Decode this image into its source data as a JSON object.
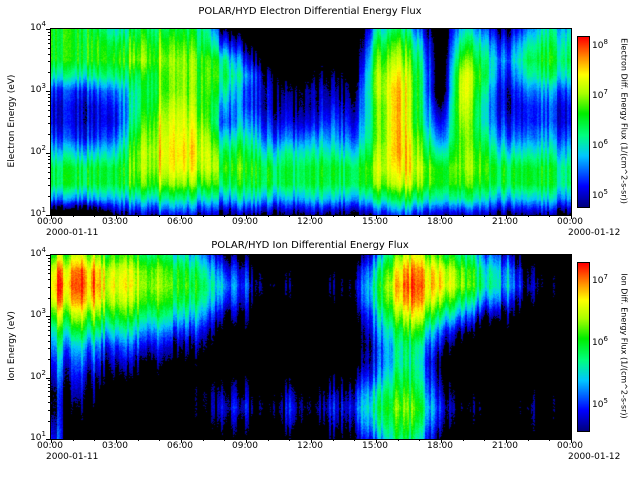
{
  "figure": {
    "background": "#ffffff",
    "text_color": "#000000"
  },
  "colormap": [
    {
      "t": 0.0,
      "hex": "#000080"
    },
    {
      "t": 0.12,
      "hex": "#0000ff"
    },
    {
      "t": 0.3,
      "hex": "#00c8ff"
    },
    {
      "t": 0.42,
      "hex": "#00ff80"
    },
    {
      "t": 0.55,
      "hex": "#00ee00"
    },
    {
      "t": 0.67,
      "hex": "#aaff00"
    },
    {
      "t": 0.78,
      "hex": "#ffff00"
    },
    {
      "t": 0.88,
      "hex": "#ff9000"
    },
    {
      "t": 1.0,
      "hex": "#ff0000"
    }
  ],
  "chart_data": [
    {
      "type": "heatmap",
      "title": "POLAR/HYD  Electron Differential Energy Flux",
      "ylabel": "Electron Energy (eV)",
      "colorbar_label": "Electron Diff. Energy Flux (1/(cm^2-s-sr))",
      "x_tick_labels": [
        "00:00",
        "03:00",
        "06:00",
        "09:00",
        "12:00",
        "15:00",
        "18:00",
        "21:00",
        "00:00"
      ],
      "x_start_date": "2000-01-11",
      "x_end_date": "2000-01-12",
      "x_range_hours": [
        0,
        24
      ],
      "y_log_range": [
        1,
        4
      ],
      "y_tick_exponents": [
        1,
        2,
        3,
        4
      ],
      "flux_scale_log_range": [
        4.8,
        8.2
      ],
      "colorbar_tick_exponents": [
        8,
        7,
        6,
        5
      ],
      "black_below_log": 4.8,
      "noise_amp": 1.0,
      "grid_hours": [
        0,
        1,
        2,
        3,
        4,
        5,
        6,
        7,
        8,
        9,
        10,
        11,
        12,
        13,
        14,
        15,
        16,
        17,
        18,
        19,
        20,
        21,
        22,
        23,
        24
      ],
      "grid_log_energy_rows": [
        1.0,
        1.25,
        1.5,
        1.75,
        2.0,
        2.25,
        2.5,
        2.75,
        3.0,
        3.25,
        3.5,
        3.75,
        4.0
      ],
      "grid_log_flux": [
        [
          4.0,
          4.0,
          4.0,
          4.8,
          5.0,
          5.2,
          5.2,
          5.0,
          4.8,
          5.0,
          4.8,
          4.8,
          4.8,
          4.8,
          4.8,
          5.2,
          5.5,
          5.2,
          4.8,
          5.0,
          5.0,
          4.8,
          4.8,
          4.8,
          4.8
        ],
        [
          5.5,
          5.5,
          5.6,
          5.8,
          6.0,
          6.2,
          6.2,
          6.0,
          5.8,
          6.0,
          5.8,
          5.8,
          5.8,
          5.9,
          5.8,
          6.3,
          6.5,
          6.3,
          5.8,
          6.2,
          6.0,
          5.8,
          5.8,
          5.8,
          5.8
        ],
        [
          6.3,
          6.4,
          6.4,
          6.5,
          6.8,
          7.0,
          7.0,
          6.8,
          6.5,
          6.6,
          6.5,
          6.5,
          6.4,
          6.5,
          6.5,
          7.0,
          7.3,
          7.0,
          6.4,
          6.8,
          6.6,
          6.5,
          6.5,
          6.4,
          6.4
        ],
        [
          6.3,
          6.4,
          6.4,
          6.5,
          7.0,
          7.3,
          7.4,
          7.2,
          6.8,
          6.8,
          6.5,
          6.5,
          6.4,
          6.6,
          6.5,
          7.2,
          7.6,
          7.2,
          6.4,
          7.0,
          6.8,
          6.5,
          6.5,
          6.4,
          6.4
        ],
        [
          5.8,
          5.8,
          5.8,
          6.0,
          7.0,
          7.4,
          7.5,
          7.3,
          6.5,
          6.6,
          6.0,
          6.2,
          6.0,
          6.2,
          6.0,
          7.0,
          7.8,
          7.0,
          5.8,
          7.0,
          6.6,
          6.0,
          6.0,
          6.0,
          6.0
        ],
        [
          5.3,
          5.2,
          5.2,
          5.5,
          6.8,
          7.3,
          7.4,
          7.2,
          6.0,
          6.2,
          5.5,
          5.6,
          5.5,
          5.8,
          5.5,
          6.8,
          7.8,
          6.8,
          5.2,
          7.0,
          6.3,
          5.5,
          5.5,
          5.6,
          5.6
        ],
        [
          5.0,
          5.0,
          5.0,
          5.2,
          6.5,
          7.2,
          7.3,
          7.0,
          5.5,
          5.8,
          5.2,
          5.2,
          5.0,
          5.5,
          5.2,
          6.8,
          7.8,
          6.5,
          4.8,
          7.2,
          6.0,
          5.2,
          5.2,
          5.3,
          5.3
        ],
        [
          5.0,
          5.0,
          5.0,
          5.3,
          6.3,
          7.0,
          7.2,
          6.8,
          5.8,
          5.5,
          5.0,
          5.0,
          4.8,
          5.2,
          5.0,
          6.8,
          7.8,
          6.5,
          4.4,
          7.4,
          6.0,
          5.0,
          5.2,
          5.3,
          5.3
        ],
        [
          5.2,
          5.2,
          5.3,
          5.6,
          6.3,
          6.8,
          7.0,
          6.8,
          6.2,
          5.5,
          5.0,
          4.8,
          4.8,
          5.0,
          4.8,
          7.0,
          7.8,
          6.5,
          4.0,
          7.5,
          6.2,
          5.0,
          5.5,
          5.6,
          5.6
        ],
        [
          6.0,
          6.0,
          6.1,
          6.3,
          6.5,
          6.8,
          7.0,
          6.8,
          6.5,
          5.8,
          4.8,
          4.5,
          4.5,
          4.8,
          4.5,
          7.0,
          7.6,
          6.5,
          4.0,
          7.4,
          6.5,
          5.2,
          6.0,
          6.2,
          6.2
        ],
        [
          6.5,
          6.5,
          6.6,
          6.7,
          7.0,
          7.0,
          7.0,
          6.8,
          6.3,
          5.3,
          4.3,
          4.2,
          4.2,
          4.5,
          4.2,
          6.8,
          7.3,
          6.3,
          4.0,
          7.0,
          6.3,
          5.5,
          6.3,
          6.5,
          6.5
        ],
        [
          6.5,
          6.5,
          6.6,
          6.5,
          6.8,
          6.8,
          6.8,
          6.5,
          5.5,
          4.8,
          4.0,
          4.0,
          4.0,
          4.2,
          4.0,
          6.5,
          7.0,
          6.0,
          4.0,
          6.5,
          6.0,
          5.2,
          6.0,
          6.3,
          6.3
        ],
        [
          6.5,
          6.5,
          6.4,
          6.0,
          6.5,
          6.5,
          6.5,
          6.3,
          4.8,
          4.2,
          4.0,
          4.0,
          4.0,
          4.0,
          4.0,
          6.0,
          6.5,
          5.5,
          4.0,
          6.0,
          5.5,
          4.8,
          5.5,
          6.0,
          6.0
        ]
      ]
    },
    {
      "type": "heatmap",
      "title": "POLAR/HYD  Ion Differential Energy Flux",
      "ylabel": "Ion Energy (eV)",
      "colorbar_label": "Ion Diff. Energy Flux (1/(cm^2-s-sr))",
      "x_tick_labels": [
        "00:00",
        "03:00",
        "06:00",
        "09:00",
        "12:00",
        "15:00",
        "18:00",
        "21:00",
        "00:00"
      ],
      "x_start_date": "2000-01-11",
      "x_end_date": "2000-01-12",
      "x_range_hours": [
        0,
        24
      ],
      "y_log_range": [
        1,
        4
      ],
      "y_tick_exponents": [
        1,
        2,
        3,
        4
      ],
      "flux_scale_log_range": [
        4.6,
        7.3
      ],
      "colorbar_tick_exponents": [
        7,
        6,
        5
      ],
      "black_below_log": 4.6,
      "noise_amp": 1.0,
      "grid_hours": [
        0,
        1,
        2,
        3,
        4,
        5,
        6,
        7,
        8,
        9,
        10,
        11,
        12,
        13,
        14,
        15,
        16,
        17,
        18,
        19,
        20,
        21,
        22,
        23,
        24
      ],
      "grid_log_energy_rows": [
        1.0,
        1.25,
        1.5,
        1.75,
        2.0,
        2.25,
        2.5,
        2.75,
        3.0,
        3.25,
        3.5,
        3.75,
        4.0
      ],
      "grid_log_flux": [
        [
          5.2,
          4.2,
          4.0,
          4.0,
          4.0,
          4.0,
          4.0,
          4.0,
          4.5,
          4.2,
          4.0,
          4.4,
          4.0,
          4.3,
          4.5,
          5.0,
          5.8,
          5.5,
          4.5,
          4.0,
          4.2,
          4.0,
          4.3,
          4.0,
          4.0
        ],
        [
          5.0,
          4.2,
          4.0,
          4.0,
          4.0,
          4.0,
          4.0,
          4.2,
          4.8,
          4.5,
          4.2,
          4.8,
          4.2,
          4.6,
          4.8,
          5.4,
          6.0,
          5.8,
          4.8,
          4.2,
          4.4,
          4.0,
          4.5,
          4.2,
          4.0
        ],
        [
          4.8,
          4.4,
          4.2,
          4.0,
          4.0,
          4.0,
          4.0,
          4.4,
          5.0,
          4.8,
          4.4,
          5.0,
          4.4,
          4.8,
          5.0,
          5.6,
          6.2,
          6.0,
          5.0,
          4.4,
          4.6,
          4.0,
          4.6,
          4.3,
          4.2
        ],
        [
          4.8,
          4.6,
          4.4,
          4.2,
          4.0,
          4.0,
          4.0,
          4.4,
          4.8,
          4.6,
          4.2,
          4.8,
          4.2,
          4.6,
          4.8,
          5.4,
          6.0,
          5.8,
          4.8,
          4.2,
          4.4,
          4.0,
          4.4,
          4.2,
          4.0
        ],
        [
          5.0,
          4.8,
          4.6,
          4.5,
          4.3,
          4.2,
          4.0,
          4.2,
          4.5,
          4.3,
          4.0,
          4.4,
          4.0,
          4.3,
          4.5,
          5.0,
          5.8,
          5.6,
          4.6,
          4.0,
          4.2,
          4.0,
          4.2,
          4.0,
          4.0
        ],
        [
          5.2,
          5.0,
          4.9,
          4.8,
          4.6,
          4.5,
          4.3,
          4.2,
          4.2,
          4.0,
          4.0,
          4.2,
          4.0,
          4.0,
          4.2,
          4.8,
          5.6,
          5.5,
          4.5,
          4.0,
          4.0,
          4.0,
          4.0,
          4.0,
          4.0
        ],
        [
          5.5,
          5.3,
          5.2,
          5.1,
          5.0,
          4.8,
          4.6,
          4.5,
          4.2,
          4.0,
          4.0,
          4.0,
          4.0,
          4.0,
          4.0,
          4.8,
          5.6,
          5.6,
          4.8,
          4.2,
          4.0,
          4.0,
          4.0,
          4.0,
          4.0
        ],
        [
          5.8,
          5.8,
          5.7,
          5.6,
          5.4,
          5.2,
          5.0,
          4.8,
          4.4,
          4.2,
          4.0,
          4.0,
          4.0,
          4.0,
          4.0,
          5.0,
          5.8,
          6.0,
          5.2,
          4.6,
          4.3,
          4.2,
          4.0,
          4.0,
          4.0
        ],
        [
          6.3,
          6.3,
          6.2,
          6.1,
          5.9,
          5.7,
          5.5,
          5.2,
          4.8,
          4.5,
          4.0,
          4.2,
          4.0,
          4.0,
          4.2,
          5.2,
          6.2,
          6.5,
          5.8,
          5.2,
          4.8,
          4.5,
          4.2,
          4.0,
          4.0
        ],
        [
          6.8,
          6.8,
          6.7,
          6.5,
          6.3,
          6.1,
          5.9,
          5.6,
          5.2,
          4.8,
          4.2,
          4.4,
          4.2,
          4.2,
          4.5,
          5.5,
          6.6,
          6.9,
          6.4,
          5.8,
          5.4,
          5.0,
          4.5,
          4.2,
          4.0
        ],
        [
          7.0,
          7.0,
          6.9,
          6.7,
          6.5,
          6.3,
          6.1,
          5.8,
          5.5,
          5.0,
          4.4,
          4.6,
          4.2,
          4.4,
          4.6,
          5.6,
          6.8,
          7.0,
          6.8,
          6.3,
          5.9,
          5.4,
          4.8,
          4.3,
          4.2
        ],
        [
          6.8,
          6.9,
          6.8,
          6.6,
          6.4,
          6.2,
          6.0,
          5.6,
          5.2,
          4.8,
          4.2,
          4.4,
          4.0,
          4.2,
          4.4,
          5.4,
          6.6,
          6.9,
          6.7,
          6.2,
          5.8,
          5.3,
          4.6,
          4.2,
          4.0
        ],
        [
          6.3,
          6.4,
          6.3,
          6.2,
          6.0,
          5.8,
          5.6,
          5.2,
          4.8,
          4.4,
          4.0,
          4.0,
          4.0,
          4.0,
          4.0,
          5.0,
          6.2,
          6.5,
          6.2,
          5.8,
          5.4,
          4.9,
          4.2,
          4.0,
          4.0
        ]
      ]
    }
  ]
}
